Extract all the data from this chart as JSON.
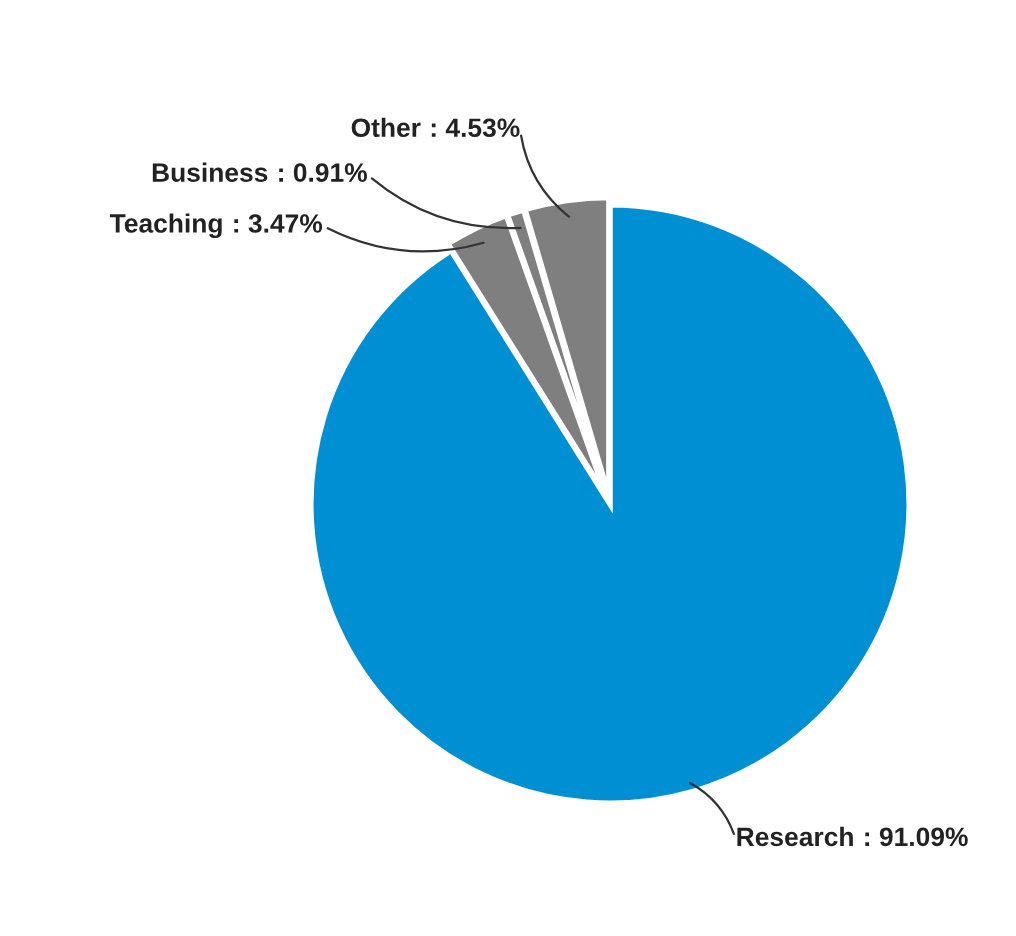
{
  "chart_data": {
    "type": "pie",
    "categories": [
      "Research",
      "Teaching",
      "Business",
      "Other"
    ],
    "values": [
      91.09,
      3.47,
      0.91,
      4.53
    ],
    "colors": [
      "#008fd3",
      "#7f7f7f",
      "#7f7f7f",
      "#7f7f7f"
    ],
    "value_labels": [
      ": 91.09%",
      ": 3.47%",
      ": 0.91%",
      ": 4.53%"
    ],
    "legend": false
  }
}
